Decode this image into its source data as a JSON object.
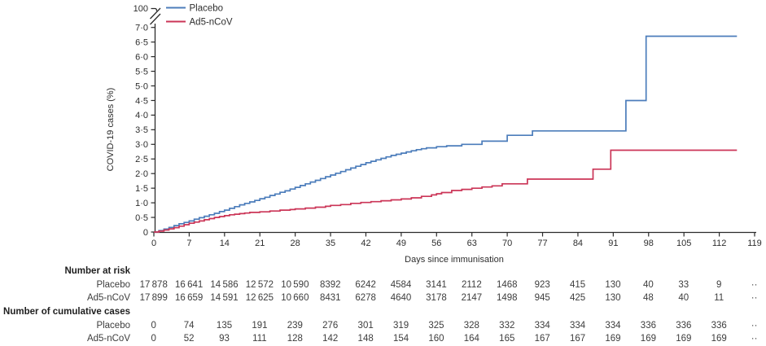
{
  "figure": {
    "legend": [
      {
        "label": "Placebo",
        "color": "#4C7DBB"
      },
      {
        "label": "Ad5-nCoV",
        "color": "#CB3557"
      }
    ],
    "y_axis": {
      "title": "COVID-19 cases (%)",
      "break_top_label": "100",
      "tick_labels": [
        "7·0",
        "6·5",
        "6·0",
        "5·5",
        "5·0",
        "4·5",
        "4·0",
        "3·5",
        "3·0",
        "2·5",
        "2·0",
        "1·5",
        "1·0",
        "0·5",
        "0"
      ]
    },
    "x_axis": {
      "title": "Days since immunisation",
      "tick_labels": [
        "0",
        "7",
        "14",
        "21",
        "28",
        "35",
        "42",
        "49",
        "56",
        "63",
        "70",
        "77",
        "84",
        "91",
        "98",
        "105",
        "112",
        "119"
      ]
    }
  },
  "chart_data": {
    "type": "line",
    "subtype": "kaplan-meier-step",
    "title": "",
    "xlabel": "Days since immunisation",
    "ylabel": "COVID-19 cases (%)",
    "xlim": [
      0,
      119
    ],
    "x_ticks": [
      0,
      7,
      14,
      21,
      28,
      35,
      42,
      49,
      56,
      63,
      70,
      77,
      84,
      91,
      98,
      105,
      112,
      119
    ],
    "y_ticks_lower": [
      0,
      0.5,
      1.0,
      1.5,
      2.0,
      2.5,
      3.0,
      3.5,
      4.0,
      4.5,
      5.0,
      5.5,
      6.0,
      6.5,
      7.0
    ],
    "y_axis_break": {
      "lower_max": 7.0,
      "upper_value": 100
    },
    "grid": false,
    "legend_position": "top-left",
    "series": [
      {
        "name": "Placebo",
        "color": "#4C7DBB",
        "final_value_pct": 6.7,
        "points_day_pct": [
          [
            0,
            0
          ],
          [
            1,
            0.05
          ],
          [
            2,
            0.1
          ],
          [
            3,
            0.16
          ],
          [
            4,
            0.22
          ],
          [
            5,
            0.28
          ],
          [
            6,
            0.33
          ],
          [
            7,
            0.38
          ],
          [
            8,
            0.44
          ],
          [
            9,
            0.49
          ],
          [
            10,
            0.54
          ],
          [
            11,
            0.59
          ],
          [
            12,
            0.64
          ],
          [
            13,
            0.7
          ],
          [
            14,
            0.75
          ],
          [
            15,
            0.81
          ],
          [
            16,
            0.87
          ],
          [
            17,
            0.93
          ],
          [
            18,
            0.98
          ],
          [
            19,
            1.03
          ],
          [
            20,
            1.08
          ],
          [
            21,
            1.14
          ],
          [
            22,
            1.19
          ],
          [
            23,
            1.25
          ],
          [
            24,
            1.3
          ],
          [
            25,
            1.36
          ],
          [
            26,
            1.41
          ],
          [
            27,
            1.47
          ],
          [
            28,
            1.53
          ],
          [
            29,
            1.59
          ],
          [
            30,
            1.65
          ],
          [
            31,
            1.71
          ],
          [
            32,
            1.77
          ],
          [
            33,
            1.83
          ],
          [
            34,
            1.89
          ],
          [
            35,
            1.95
          ],
          [
            36,
            2.01
          ],
          [
            37,
            2.07
          ],
          [
            38,
            2.13
          ],
          [
            39,
            2.19
          ],
          [
            40,
            2.25
          ],
          [
            41,
            2.31
          ],
          [
            42,
            2.37
          ],
          [
            43,
            2.42
          ],
          [
            44,
            2.47
          ],
          [
            45,
            2.52
          ],
          [
            46,
            2.57
          ],
          [
            47,
            2.62
          ],
          [
            48,
            2.66
          ],
          [
            49,
            2.7
          ],
          [
            50,
            2.74
          ],
          [
            51,
            2.78
          ],
          [
            52,
            2.82
          ],
          [
            53,
            2.85
          ],
          [
            54,
            2.88
          ],
          [
            56,
            2.92
          ],
          [
            58,
            2.95
          ],
          [
            61,
            3.0
          ],
          [
            65,
            3.11
          ],
          [
            70,
            3.31
          ],
          [
            75,
            3.46
          ],
          [
            93.5,
            4.5
          ],
          [
            97.5,
            6.7
          ],
          [
            115.5,
            6.7
          ]
        ]
      },
      {
        "name": "Ad5-nCoV",
        "color": "#CB3557",
        "final_value_pct": 2.8,
        "points_day_pct": [
          [
            0,
            0
          ],
          [
            1,
            0.03
          ],
          [
            2,
            0.07
          ],
          [
            3,
            0.11
          ],
          [
            4,
            0.15
          ],
          [
            5,
            0.2
          ],
          [
            6,
            0.25
          ],
          [
            7,
            0.3
          ],
          [
            8,
            0.34
          ],
          [
            9,
            0.38
          ],
          [
            10,
            0.42
          ],
          [
            11,
            0.46
          ],
          [
            12,
            0.5
          ],
          [
            13,
            0.53
          ],
          [
            14,
            0.56
          ],
          [
            15,
            0.59
          ],
          [
            16,
            0.61
          ],
          [
            17,
            0.63
          ],
          [
            18,
            0.65
          ],
          [
            19,
            0.67
          ],
          [
            21,
            0.69
          ],
          [
            23,
            0.72
          ],
          [
            25,
            0.75
          ],
          [
            27,
            0.77
          ],
          [
            28,
            0.79
          ],
          [
            30,
            0.82
          ],
          [
            32,
            0.85
          ],
          [
            34,
            0.88
          ],
          [
            35,
            0.91
          ],
          [
            37,
            0.94
          ],
          [
            39,
            0.98
          ],
          [
            41,
            1.01
          ],
          [
            43,
            1.04
          ],
          [
            45,
            1.07
          ],
          [
            47,
            1.1
          ],
          [
            49,
            1.13
          ],
          [
            51,
            1.17
          ],
          [
            53,
            1.22
          ],
          [
            55,
            1.27
          ],
          [
            56,
            1.31
          ],
          [
            57,
            1.35
          ],
          [
            59,
            1.42
          ],
          [
            61,
            1.46
          ],
          [
            63,
            1.5
          ],
          [
            65,
            1.54
          ],
          [
            67,
            1.58
          ],
          [
            69,
            1.65
          ],
          [
            74,
            1.81
          ],
          [
            87,
            2.15
          ],
          [
            90.5,
            2.8
          ],
          [
            115.5,
            2.8
          ]
        ]
      }
    ]
  },
  "risk_table": {
    "sections": [
      {
        "header": "Number at risk",
        "rows": [
          {
            "label": "Placebo",
            "values": [
              "17 878",
              "16 641",
              "14 586",
              "12 572",
              "10 590",
              "8392",
              "6242",
              "4584",
              "3141",
              "2112",
              "1468",
              "923",
              "415",
              "130",
              "40",
              "33",
              "9",
              "··"
            ]
          },
          {
            "label": "Ad5-nCoV",
            "values": [
              "17 899",
              "16 659",
              "14 591",
              "12 625",
              "10 660",
              "8431",
              "6278",
              "4640",
              "3178",
              "2147",
              "1498",
              "945",
              "425",
              "130",
              "48",
              "40",
              "11",
              "··"
            ]
          }
        ]
      },
      {
        "header": "Number of cumulative cases",
        "rows": [
          {
            "label": "Placebo",
            "values": [
              "0",
              "74",
              "135",
              "191",
              "239",
              "276",
              "301",
              "319",
              "325",
              "328",
              "332",
              "334",
              "334",
              "334",
              "336",
              "336",
              "336",
              "··"
            ]
          },
          {
            "label": "Ad5-nCoV",
            "values": [
              "0",
              "52",
              "93",
              "111",
              "128",
              "142",
              "148",
              "154",
              "160",
              "164",
              "165",
              "167",
              "167",
              "169",
              "169",
              "169",
              "169",
              "··"
            ]
          }
        ]
      }
    ]
  }
}
